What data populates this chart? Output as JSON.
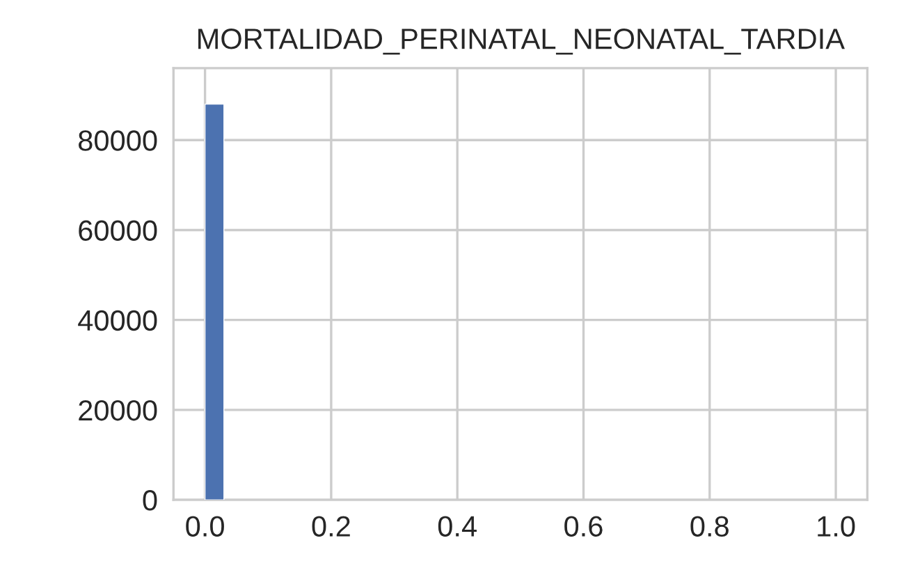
{
  "chart_data": {
    "type": "histogram",
    "title": "MORTALIDAD_PERINATAL_NEONATAL_TARDIA",
    "bins": [
      0,
      0.03
    ],
    "values": [
      88000
    ],
    "color": "#4c72b0",
    "xlim": [
      -0.05,
      1.05
    ],
    "xticks": [
      {
        "value": 0,
        "label": "0.0"
      },
      0.2,
      0.4,
      0.6,
      0.8,
      {
        "value": 1,
        "label": "1.0"
      }
    ],
    "ylim": [
      0,
      96000
    ],
    "yticks": [
      0,
      20000,
      40000,
      60000,
      80000
    ],
    "grid": true
  }
}
